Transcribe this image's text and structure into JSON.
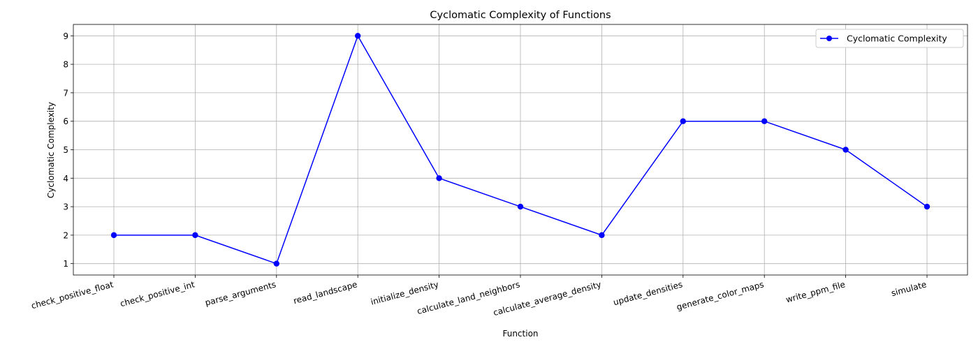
{
  "chart_data": {
    "type": "line",
    "title": "Cyclomatic Complexity of Functions",
    "xlabel": "Function",
    "ylabel": "Cyclomatic Complexity",
    "categories": [
      "check_positive_float",
      "check_positive_int",
      "parse_arguments",
      "read_landscape",
      "initialize_density",
      "calculate_land_neighbors",
      "calculate_average_density",
      "update_densities",
      "generate_color_maps",
      "write_ppm_file",
      "simulate"
    ],
    "series": [
      {
        "name": "Cyclomatic Complexity",
        "values": [
          2,
          2,
          1,
          9,
          4,
          3,
          2,
          6,
          6,
          5,
          3
        ],
        "color": "#0000ff",
        "marker": "circle"
      }
    ],
    "ylim": [
      0.6,
      9.4
    ],
    "yticks": [
      1,
      2,
      3,
      4,
      5,
      6,
      7,
      8,
      9
    ],
    "grid": true,
    "legend": "top-right",
    "x_tick_rotation_deg": -15
  }
}
